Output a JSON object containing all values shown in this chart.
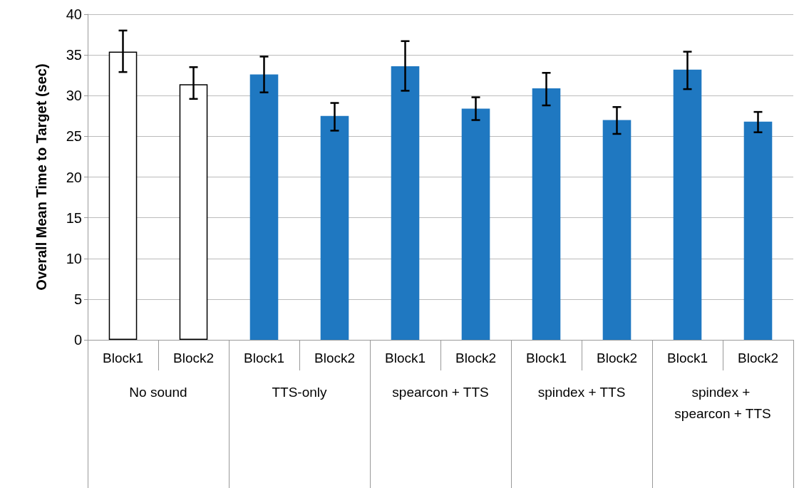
{
  "chart_data": {
    "type": "bar",
    "ylabel": "Overall Mean Time to Target (sec)",
    "categories": [
      "Block1",
      "Block2",
      "Block1",
      "Block2",
      "Block1",
      "Block2",
      "Block1",
      "Block2",
      "Block1",
      "Block2"
    ],
    "values": [
      35.4,
      31.4,
      32.6,
      27.5,
      33.6,
      28.4,
      30.9,
      27.0,
      33.2,
      26.8
    ],
    "colors": [
      "#ffffff",
      "#ffffff",
      "#1f78c1",
      "#1f78c1",
      "#1f78c1",
      "#1f78c1",
      "#1f78c1",
      "#1f78c1",
      "#1f78c1",
      "#1f78c1"
    ],
    "errors": [
      [
        32.9,
        38.0
      ],
      [
        29.6,
        33.5
      ],
      [
        30.4,
        34.8
      ],
      [
        25.7,
        29.1
      ],
      [
        30.6,
        36.7
      ],
      [
        27.0,
        29.8
      ],
      [
        28.8,
        32.8
      ],
      [
        25.3,
        28.6
      ],
      [
        30.8,
        35.4
      ],
      [
        25.5,
        28.0
      ]
    ],
    "annotations": [
      "No sound",
      "TTS-only",
      "spearcon + TTS",
      "spindex + TTS",
      "spindex + spearcon + TTS"
    ],
    "ylim": [
      0,
      40
    ],
    "yticks": [
      0,
      5,
      10,
      15,
      20,
      25,
      30,
      35,
      40
    ],
    "grid": "y"
  }
}
